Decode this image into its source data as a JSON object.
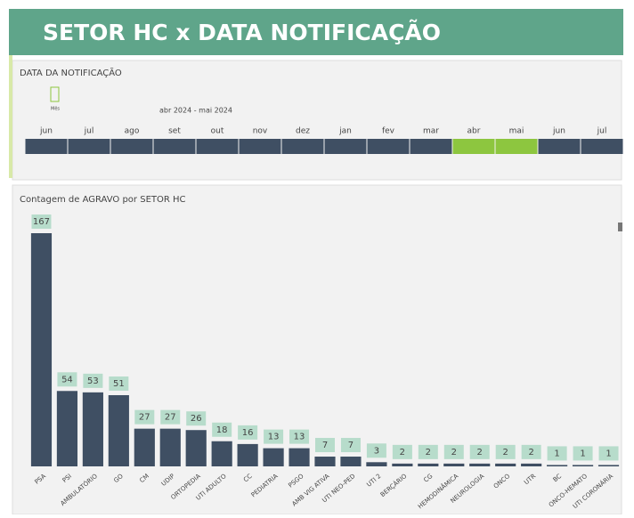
{
  "header": {
    "title": "SETOR HC x DATA NOTIFICAÇÃO"
  },
  "slicer": {
    "title": "DATA DA NOTIFICAÇÃO",
    "level": "Mês",
    "range": "abr 2024 - mai 2024",
    "months": [
      {
        "label": "jun",
        "selected": false
      },
      {
        "label": "jul",
        "selected": false
      },
      {
        "label": "ago",
        "selected": false
      },
      {
        "label": "set",
        "selected": false
      },
      {
        "label": "out",
        "selected": false
      },
      {
        "label": "nov",
        "selected": false
      },
      {
        "label": "dez",
        "selected": false
      },
      {
        "label": "jan",
        "selected": false
      },
      {
        "label": "fev",
        "selected": false
      },
      {
        "label": "mar",
        "selected": false
      },
      {
        "label": "abr",
        "selected": true
      },
      {
        "label": "mai",
        "selected": true
      },
      {
        "label": "jun",
        "selected": false
      },
      {
        "label": "jul",
        "selected": false
      }
    ]
  },
  "chart_data": {
    "type": "bar",
    "title": "Contagem de AGRAVO por SETOR HC",
    "color": "#3f4f63",
    "label_color": "#b7dccb",
    "categories": [
      "PSA",
      "PSI",
      "AMBULATÓRIO",
      "GO",
      "CM",
      "UDIP",
      "ORTOPEDIA",
      "UTI ADULTO",
      "CC",
      "PEDIATRIA",
      "PSGO",
      "AMB VIG ATIVA",
      "UTI NEO-PED",
      "UTI 2",
      "BERÇÁRIO",
      "CG",
      "HEMODINÂMICA",
      "NEUROLOGIA",
      "ONCO",
      "UTR",
      "BC",
      "ONCO-HEMATO",
      "UTI CORONÁRIA"
    ],
    "values": [
      167,
      54,
      53,
      51,
      27,
      27,
      26,
      18,
      16,
      13,
      13,
      7,
      7,
      3,
      2,
      2,
      2,
      2,
      2,
      2,
      1,
      1,
      1
    ]
  }
}
